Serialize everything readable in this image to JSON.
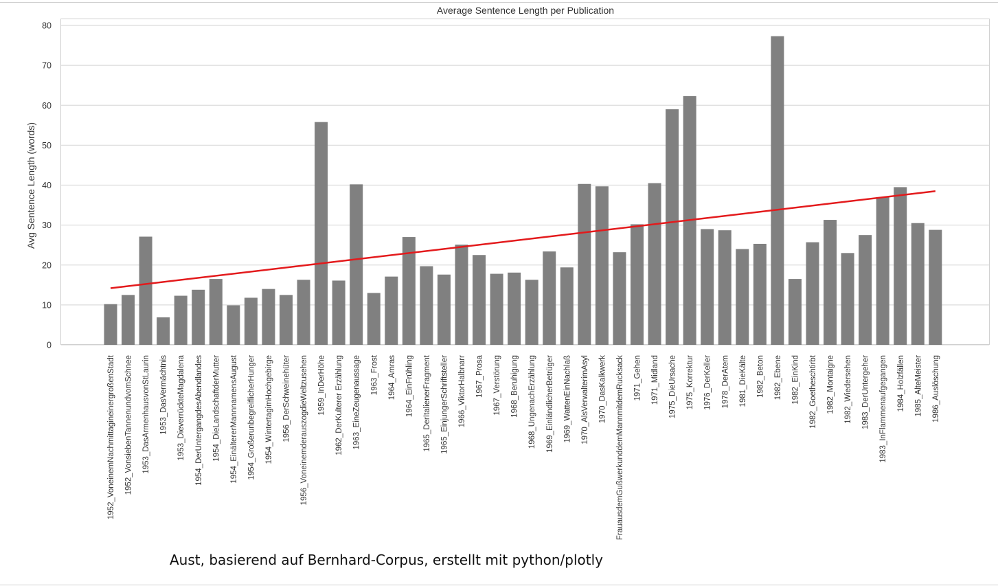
{
  "chart_data": {
    "type": "bar",
    "title": "Average Sentence Length per Publication",
    "xlabel": "",
    "ylabel": "Avg Sentence Length (words)",
    "ylim": [
      0,
      80
    ],
    "yticks": [
      0,
      10,
      20,
      30,
      40,
      50,
      60,
      70,
      80
    ],
    "grid": true,
    "legend": "none",
    "categories": [
      "1952_VoneinemNachmittagineinergroßenStadt",
      "1952_VonsiebenTannenundvomSchnee",
      "1953_DasArmenhausvonStLaurin",
      "1953_DasVermächtnis",
      "1953_DieverrückteMagdalena",
      "1954_DerUntergangdesAbendlandes",
      "1954_DieLandschaftderMutter",
      "1954_EinältererMannnamensAugust",
      "1954_GroßerunbegreiflicherHunger",
      "1954_WintertagimHochgebirge",
      "1956_DerSchweinehüter",
      "1956_VoneinemderauszogdieWeltzusehen",
      "1959_InDerHöhe",
      "1962_DerKulterer Erzählung",
      "1963_EineZeugenaussage",
      "1963_Frost",
      "1964_Amras",
      "1964_EinFrühling",
      "1965_DerItalienerFragment",
      "1965_EinjungerSchriftsteller",
      "1966_ViktorHalbnarr",
      "1967_Prosa",
      "1967_Verstörung",
      "1968_Beruhigung",
      "1968_UngenachErzählung",
      "1969_EinländlicherBetrüger",
      "1969_WattenEinNachlaß",
      "1970_AlsVerwalterimAsyl",
      "1970_DasKalkwerk",
      "FrauausdemGußwerkunddemMannmitdemRucksack",
      "1971_Gehen",
      "1971_Midland",
      "1975_DieUrsache",
      "1975_Korrektur",
      "1976_DerKeller",
      "1978_DerAtem",
      "1981_DieKälte",
      "1982_Beton",
      "1982_Ebene",
      "1982_EinKind",
      "1982_Goetheschtirbt",
      "1982_Montaigne",
      "1982_Wiedersehen",
      "1983_DerUntergeher",
      "1983_InFlammenaufgegangen",
      "1984_Holzfällen",
      "1985_AlteMeister",
      "1986_Auslöschung"
    ],
    "values": [
      10.2,
      12.5,
      27.1,
      6.9,
      12.3,
      13.8,
      16.5,
      9.9,
      11.8,
      14.0,
      12.5,
      16.3,
      55.8,
      16.1,
      40.2,
      13.0,
      17.1,
      27.0,
      19.7,
      17.6,
      25.1,
      22.5,
      17.8,
      18.1,
      16.3,
      23.4,
      19.4,
      40.3,
      39.7,
      23.2,
      30.2,
      40.5,
      59.0,
      62.3,
      29.0,
      28.7,
      24.0,
      25.3,
      77.3,
      16.5,
      25.7,
      31.3,
      23.0,
      27.5,
      37.0,
      39.5,
      30.5,
      28.8
    ],
    "bar_color": "#808080",
    "trendline": {
      "color": "#e31a1c",
      "start_value": 14.2,
      "end_value": 38.5
    }
  },
  "caption": "Aust, basierend auf Bernhard-Corpus, erstellt mit python/plotly"
}
